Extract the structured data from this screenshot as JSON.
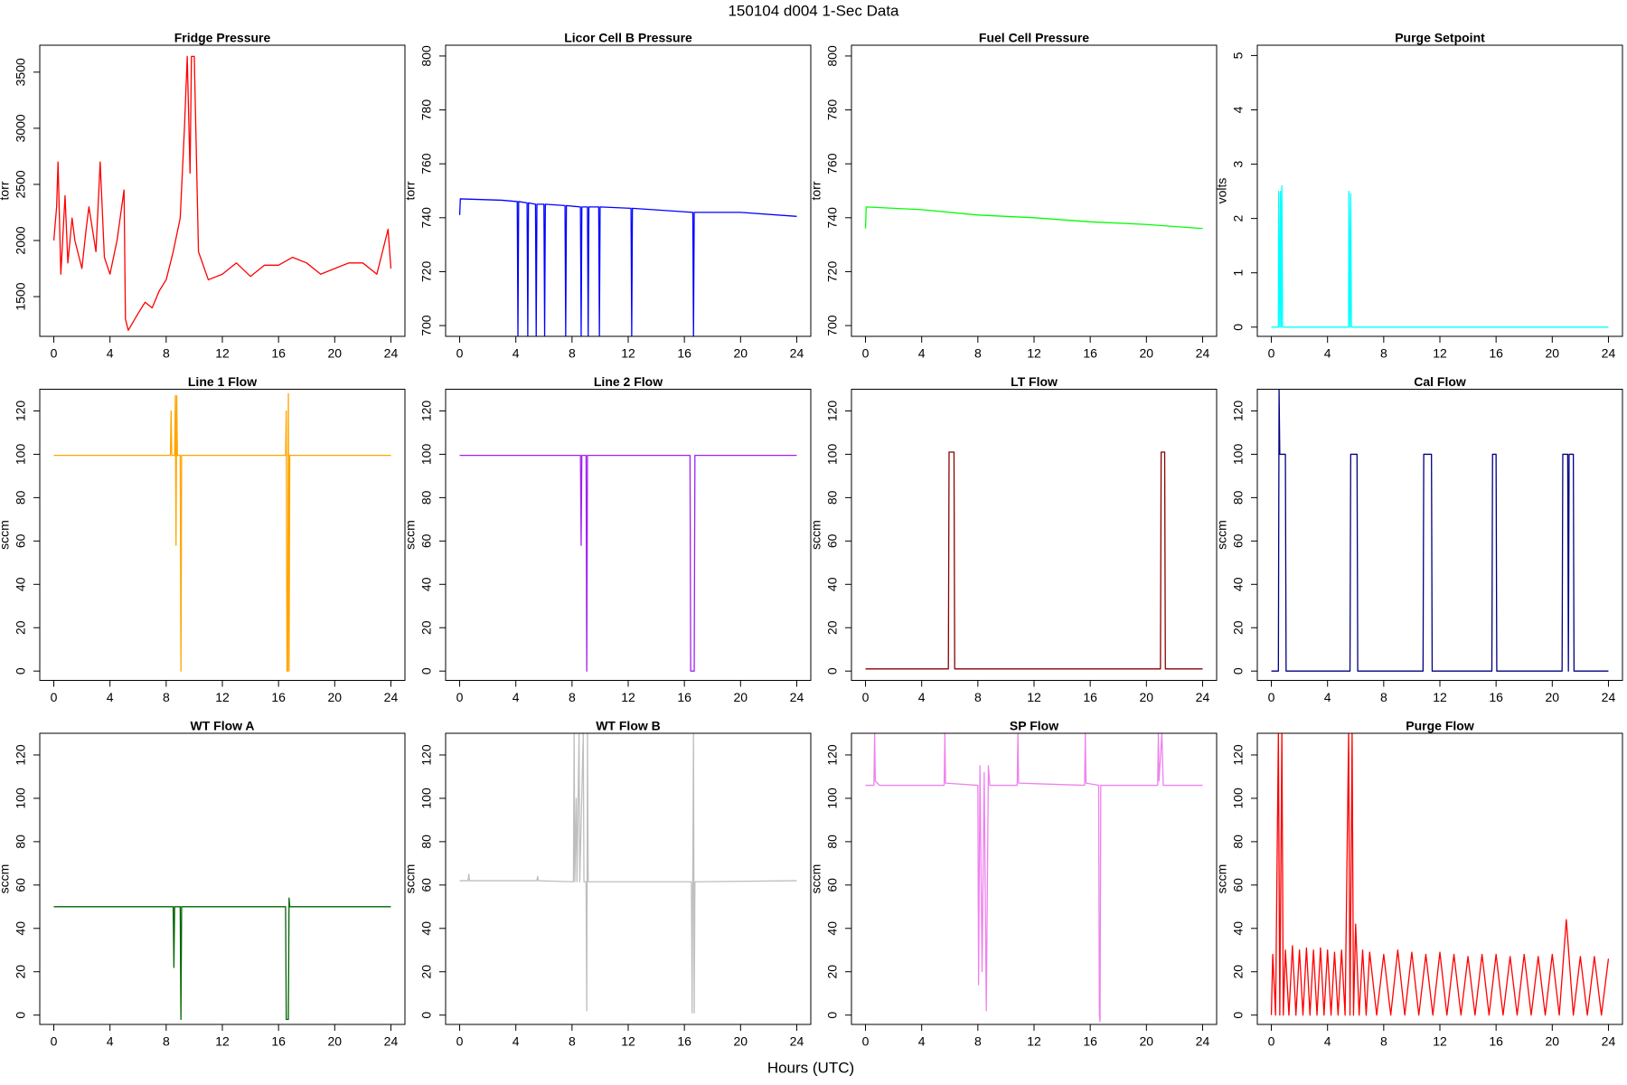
{
  "title": "150104   d004   1-Sec Data",
  "x_label": "Hours (UTC)",
  "chart_data": [
    {
      "type": "line",
      "title": "Fridge Pressure",
      "y_label": "torr",
      "color": "#ff0000",
      "xlim": [
        -1,
        25
      ],
      "xticks": [
        0,
        4,
        8,
        12,
        16,
        20,
        24
      ],
      "ylim": [
        1146,
        3740
      ],
      "yticks": [
        1500,
        2000,
        2500,
        3000,
        3500
      ],
      "x": [
        0,
        0.2,
        0.3,
        0.5,
        0.8,
        1,
        1.3,
        1.5,
        2,
        2.3,
        2.5,
        3,
        3.3,
        3.6,
        4,
        4.5,
        5,
        5.1,
        5.3,
        6,
        6.5,
        7,
        7.5,
        8,
        8.5,
        9,
        9.3,
        9.5,
        9.7,
        9.8,
        10,
        10.3,
        11,
        12,
        13,
        14,
        15,
        16,
        17,
        18,
        19,
        20,
        21,
        22,
        23,
        23.8,
        24
      ],
      "values": [
        2000,
        2300,
        2700,
        1700,
        2400,
        1800,
        2200,
        2000,
        1750,
        2100,
        2300,
        1900,
        2700,
        1850,
        1700,
        2000,
        2450,
        1300,
        1200,
        1350,
        1450,
        1400,
        1550,
        1650,
        1900,
        2200,
        3000,
        3640,
        2600,
        3640,
        3640,
        1900,
        1650,
        1700,
        1800,
        1680,
        1780,
        1780,
        1850,
        1800,
        1700,
        1750,
        1800,
        1800,
        1700,
        2100,
        1750
      ]
    },
    {
      "type": "line",
      "title": "Licor Cell B Pressure",
      "y_label": "torr",
      "color": "#0000ff",
      "xlim": [
        -1,
        25
      ],
      "xticks": [
        0,
        4,
        8,
        12,
        16,
        20,
        24
      ],
      "ylim": [
        696,
        804
      ],
      "yticks": [
        700,
        720,
        740,
        760,
        780,
        800
      ],
      "x": [
        0,
        0.05,
        3,
        4.1,
        4.15,
        4.2,
        4.8,
        4.85,
        4.9,
        5.4,
        5.45,
        5.5,
        6,
        6.05,
        6.1,
        7.5,
        7.55,
        7.6,
        8.6,
        8.65,
        8.7,
        9.1,
        9.15,
        9.2,
        9.9,
        9.95,
        10,
        12.2,
        12.25,
        12.3,
        16.6,
        16.65,
        16.7,
        20,
        24
      ],
      "values": [
        741,
        747,
        746.5,
        746,
        696,
        746,
        745.5,
        696,
        745.5,
        745,
        696,
        745,
        745,
        696,
        745,
        744.5,
        696,
        744.5,
        744,
        696,
        744,
        744,
        696,
        744,
        744,
        696,
        744,
        743.5,
        696,
        743.5,
        742,
        696,
        742,
        742,
        740.5
      ]
    },
    {
      "type": "line",
      "title": "Fuel Cell Pressure",
      "y_label": "torr",
      "color": "#00ff00",
      "xlim": [
        -1,
        25
      ],
      "xticks": [
        0,
        4,
        8,
        12,
        16,
        20,
        24
      ],
      "ylim": [
        696,
        804
      ],
      "yticks": [
        700,
        720,
        740,
        760,
        780,
        800
      ],
      "x": [
        0,
        0.05,
        4,
        8,
        12,
        16,
        20,
        24
      ],
      "values": [
        736,
        744,
        743,
        741,
        740,
        738.5,
        737.5,
        736
      ]
    },
    {
      "type": "line",
      "title": "Purge Setpoint",
      "y_label": "volts",
      "color": "#00ffff",
      "xlim": [
        -1,
        25
      ],
      "xticks": [
        0,
        4,
        8,
        12,
        16,
        20,
        24
      ],
      "ylim": [
        -0.17,
        5.19
      ],
      "yticks": [
        0,
        1,
        2,
        3,
        4,
        5
      ],
      "x": [
        0,
        0.5,
        0.52,
        0.6,
        0.65,
        0.7,
        0.75,
        0.8,
        5.5,
        5.52,
        5.6,
        5.65,
        5.7,
        24
      ],
      "values": [
        0,
        0,
        2.5,
        0,
        2.5,
        0,
        2.6,
        0,
        0,
        2.5,
        0,
        2.45,
        0,
        0
      ]
    },
    {
      "type": "line",
      "title": "Line 1 Flow",
      "y_label": "sccm",
      "color": "#ffa500",
      "xlim": [
        -1,
        25
      ],
      "xticks": [
        0,
        4,
        8,
        12,
        16,
        20,
        24
      ],
      "ylim": [
        -4.3,
        130
      ],
      "yticks": [
        0,
        20,
        40,
        60,
        80,
        100,
        120
      ],
      "x": [
        0,
        8.3,
        8.35,
        8.4,
        8.6,
        8.65,
        8.7,
        8.75,
        8.8,
        9,
        9.05,
        9.1,
        16.5,
        16.55,
        16.6,
        16.65,
        16.7,
        16.75,
        16.8,
        24
      ],
      "values": [
        99.5,
        99.5,
        120,
        99.5,
        99.5,
        127,
        58,
        127,
        99.5,
        99.5,
        0,
        99.5,
        99.5,
        120,
        0,
        0,
        128,
        0,
        99.5,
        99.5
      ]
    },
    {
      "type": "line",
      "title": "Line 2 Flow",
      "y_label": "sccm",
      "color": "#a020f0",
      "xlim": [
        -1,
        25
      ],
      "xticks": [
        0,
        4,
        8,
        12,
        16,
        20,
        24
      ],
      "ylim": [
        -4.3,
        130
      ],
      "yticks": [
        0,
        20,
        40,
        60,
        80,
        100,
        120
      ],
      "x": [
        0,
        8.6,
        8.65,
        8.7,
        9,
        9.05,
        9.1,
        16.4,
        16.45,
        16.7,
        16.75,
        24
      ],
      "values": [
        99.5,
        99.5,
        58,
        99.5,
        99.5,
        0,
        99.5,
        99.5,
        0,
        0,
        99.5,
        99.5
      ]
    },
    {
      "type": "line",
      "title": "LT Flow",
      "y_label": "sccm",
      "color": "#8b0000",
      "xlim": [
        -1,
        25
      ],
      "xticks": [
        0,
        4,
        8,
        12,
        16,
        20,
        24
      ],
      "ylim": [
        -4.3,
        130
      ],
      "yticks": [
        0,
        20,
        40,
        60,
        80,
        100,
        120
      ],
      "x": [
        0,
        5.9,
        5.95,
        6.3,
        6.35,
        21,
        21.05,
        21.3,
        21.35,
        24
      ],
      "values": [
        1,
        1,
        101,
        101,
        1,
        1,
        101,
        101,
        1,
        1
      ]
    },
    {
      "type": "line",
      "title": "Cal Flow",
      "y_label": "sccm",
      "color": "#000080",
      "xlim": [
        -1,
        25
      ],
      "xticks": [
        0,
        4,
        8,
        12,
        16,
        20,
        24
      ],
      "ylim": [
        -4.3,
        130
      ],
      "yticks": [
        0,
        20,
        40,
        60,
        80,
        100,
        120
      ],
      "x": [
        0,
        0.5,
        0.55,
        0.6,
        1,
        1.05,
        5.6,
        5.65,
        6.1,
        6.15,
        10.8,
        10.85,
        11.4,
        11.45,
        15.7,
        15.75,
        16,
        16.05,
        20.7,
        20.75,
        21.1,
        21.15,
        21.2,
        21.5,
        21.55,
        24
      ],
      "values": [
        0,
        0,
        130,
        100,
        100,
        0,
        0,
        100,
        100,
        0,
        0,
        100,
        100,
        0,
        0,
        100,
        100,
        0,
        0,
        100,
        100,
        0,
        100,
        100,
        0,
        0
      ]
    },
    {
      "type": "line",
      "title": "WT Flow A",
      "y_label": "sccm",
      "color": "#006400",
      "xlim": [
        -1,
        25
      ],
      "xticks": [
        0,
        4,
        8,
        12,
        16,
        20,
        24
      ],
      "ylim": [
        -4.3,
        130
      ],
      "yticks": [
        0,
        20,
        40,
        60,
        80,
        100,
        120
      ],
      "x": [
        0,
        8.5,
        8.55,
        8.6,
        9,
        9.05,
        9.1,
        16.5,
        16.55,
        16.7,
        16.75,
        16.8,
        24
      ],
      "values": [
        50,
        50,
        22,
        50,
        50,
        -2,
        50,
        50,
        -2,
        -2,
        54,
        50,
        50
      ]
    },
    {
      "type": "line",
      "title": "WT Flow B",
      "y_label": "sccm",
      "color": "#bebebe",
      "xlim": [
        -1,
        25
      ],
      "xticks": [
        0,
        4,
        8,
        12,
        16,
        20,
        24
      ],
      "ylim": [
        -4.3,
        130
      ],
      "yticks": [
        0,
        20,
        40,
        60,
        80,
        100,
        120
      ],
      "x": [
        0,
        0.6,
        0.65,
        0.7,
        5.5,
        5.55,
        5.6,
        8.1,
        8.15,
        8.2,
        8.3,
        8.35,
        8.5,
        8.55,
        8.8,
        8.85,
        9,
        9.05,
        9.1,
        9.15,
        16.5,
        16.55,
        16.65,
        16.7,
        16.75,
        24
      ],
      "values": [
        62,
        62,
        65,
        62,
        62,
        64,
        62,
        61.5,
        130,
        61.5,
        100,
        61.5,
        130,
        61.5,
        130,
        61.5,
        61.5,
        2,
        130,
        61.5,
        61.5,
        1,
        130,
        1,
        61.5,
        62
      ]
    },
    {
      "type": "line",
      "title": "SP Flow",
      "y_label": "sccm",
      "color": "#ee82ee",
      "xlim": [
        -1,
        25
      ],
      "xticks": [
        0,
        4,
        8,
        12,
        16,
        20,
        24
      ],
      "ylim": [
        -4.3,
        130
      ],
      "yticks": [
        0,
        20,
        40,
        60,
        80,
        100,
        120
      ],
      "x": [
        0,
        0.6,
        0.65,
        0.7,
        1,
        5.6,
        5.65,
        5.7,
        8,
        8.05,
        8.15,
        8.3,
        8.45,
        8.6,
        8.75,
        8.85,
        10.8,
        10.85,
        10.9,
        15.6,
        15.65,
        15.7,
        16.6,
        16.65,
        16.7,
        16.75,
        20.8,
        20.85,
        20.9,
        21.1,
        21.2,
        24
      ],
      "values": [
        106,
        106,
        130,
        108,
        106,
        106,
        130,
        107,
        106,
        14,
        115,
        20,
        112,
        2,
        115,
        106,
        106,
        130,
        107,
        106,
        130,
        107,
        106,
        0,
        -3,
        106,
        106,
        130,
        108,
        130,
        106,
        106
      ]
    },
    {
      "type": "line",
      "title": "Purge Flow",
      "y_label": "sccm",
      "color": "#ff0000",
      "xlim": [
        -1,
        25
      ],
      "xticks": [
        0,
        4,
        8,
        12,
        16,
        20,
        24
      ],
      "ylim": [
        -4.3,
        130
      ],
      "yticks": [
        0,
        20,
        40,
        60,
        80,
        100,
        120
      ],
      "x": [
        0,
        0.1,
        0.3,
        0.5,
        0.6,
        0.75,
        0.85,
        1,
        1.25,
        1.5,
        1.75,
        2,
        2.25,
        2.5,
        2.75,
        3,
        3.25,
        3.5,
        3.75,
        4,
        4.25,
        4.5,
        4.75,
        5,
        5.25,
        5.5,
        5.6,
        5.75,
        5.85,
        6,
        6.25,
        6.5,
        6.75,
        7,
        7.5,
        8,
        8.5,
        9,
        9.5,
        10,
        10.5,
        11,
        11.5,
        12,
        12.5,
        13,
        13.5,
        14,
        14.5,
        15,
        15.5,
        16,
        16.5,
        17,
        17.5,
        18,
        18.5,
        19,
        19.5,
        20,
        20.5,
        21,
        21.5,
        22,
        22.5,
        23,
        23.5,
        24
      ],
      "values": [
        0,
        28,
        0,
        130,
        0,
        130,
        0,
        30,
        0,
        32,
        0,
        30,
        0,
        31,
        0,
        30,
        0,
        31,
        0,
        30,
        0,
        29,
        0,
        30,
        0,
        130,
        0,
        130,
        0,
        42,
        0,
        30,
        0,
        29,
        0,
        28,
        0,
        30,
        0,
        29,
        0,
        28,
        0,
        29,
        0,
        28,
        0,
        27,
        0,
        28,
        0,
        28,
        0,
        27,
        0,
        28,
        0,
        27,
        0,
        28,
        0,
        44,
        0,
        27,
        0,
        27,
        0,
        26
      ]
    }
  ]
}
